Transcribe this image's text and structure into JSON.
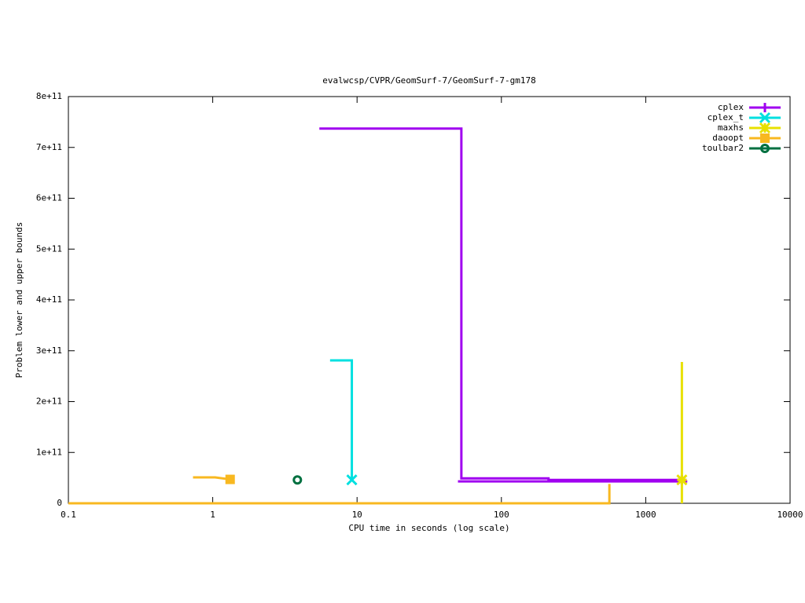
{
  "chart_data": {
    "type": "line",
    "title": "evalwcsp/CVPR/GeomSurf-7/GeomSurf-7-gm178",
    "x_label": "CPU time in seconds (log scale)",
    "y_label": "Problem lower and upper bounds",
    "x_scale": "log",
    "xlim": [
      0.1,
      10000
    ],
    "xticks": [
      0.1,
      1,
      10,
      100,
      1000,
      10000
    ],
    "ylim": [
      0,
      800000000000
    ],
    "yticks": [
      0,
      {
        "value": 100000000000,
        "label": "1e+11"
      },
      {
        "value": 200000000000,
        "label": "2e+11"
      },
      {
        "value": 300000000000,
        "label": "3e+11"
      },
      {
        "value": 400000000000,
        "label": "4e+11"
      },
      {
        "value": 500000000000,
        "label": "5e+11"
      },
      {
        "value": 600000000000,
        "label": "6e+11"
      },
      {
        "value": 700000000000,
        "label": "7e+11"
      },
      {
        "value": 800000000000,
        "label": "8e+11"
      }
    ],
    "legend": "top-right",
    "series": [
      {
        "name": "cplex",
        "color": "#a000f0",
        "marker": "plus",
        "x": [
          50,
          1940,
          null,
          5.48,
          52.8,
          52.8,
          212,
          212,
          1780
        ],
        "values": [
          43000000000,
          43000000000,
          null,
          737000000000,
          737000000000,
          49000000000,
          49000000000,
          46000000000,
          46000000000
        ]
      },
      {
        "name": "cplex_t",
        "color": "#00e0e0",
        "marker": "cross",
        "x": [
          6.5,
          9.2,
          9.2
        ],
        "values": [
          281000000000,
          281000000000,
          46000000000
        ]
      },
      {
        "name": "maxhs",
        "color": "#e8e000",
        "marker": "star",
        "x": [
          1780,
          1780,
          null,
          1780
        ],
        "values": [
          0,
          278000000000,
          null,
          46000000000
        ]
      },
      {
        "name": "daoopt",
        "color": "#f8b820",
        "marker": "square",
        "x": [
          0.1,
          560,
          560,
          null,
          0.73,
          1.04,
          1.32
        ],
        "values": [
          0,
          0,
          38000000000,
          null,
          51000000000,
          51000000000,
          47000000000
        ]
      },
      {
        "name": "toulbar2",
        "color": "#007040",
        "marker": "circle",
        "x": [
          3.86
        ],
        "values": [
          46000000000
        ]
      }
    ]
  }
}
